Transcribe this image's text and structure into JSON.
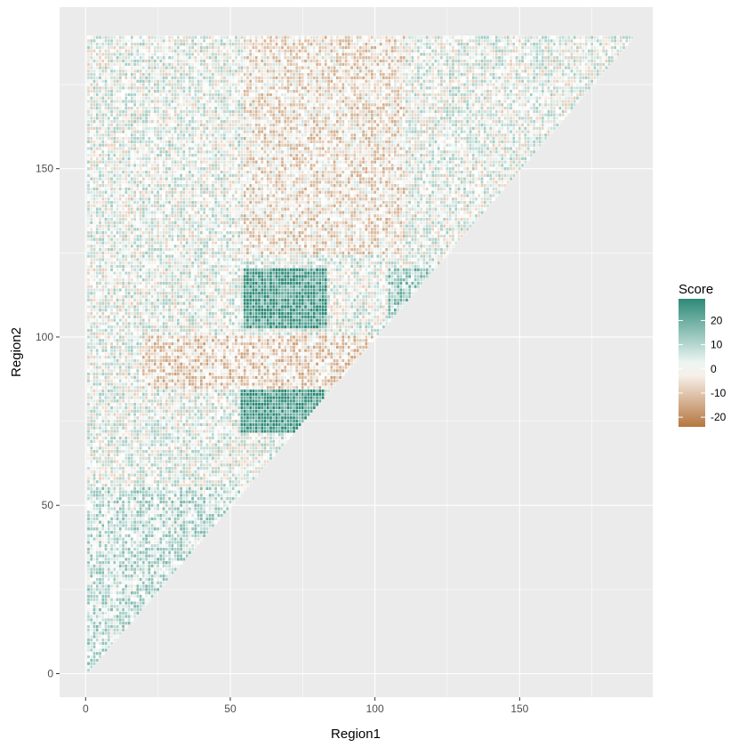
{
  "chart_data": {
    "type": "heatmap",
    "title": "",
    "xlabel": "Region1",
    "ylabel": "Region2",
    "xlim": [
      -9,
      196
    ],
    "ylim": [
      -7,
      198
    ],
    "x_ticks": [
      0,
      50,
      100,
      150
    ],
    "x_tick_labels": [
      "0",
      "50",
      "100",
      "150"
    ],
    "y_ticks": [
      0,
      50,
      100,
      150
    ],
    "y_tick_labels": [
      "0",
      "50",
      "100",
      "150"
    ],
    "n_regions": 189,
    "layout": "lower-triangle: tiles where Region2 >= Region1",
    "grid": true,
    "legend": {
      "title": "Score",
      "position": "right",
      "ticks": [
        20,
        10,
        0,
        -10,
        -20
      ],
      "tick_labels": [
        "20",
        "10",
        "0",
        "-10",
        "-20"
      ],
      "min": -24,
      "max": 29,
      "low_color": "#b5763f",
      "mid_color": "#ffffff",
      "high_color": "#2c8a77"
    },
    "blocks": [
      {
        "region1": [
          55,
          83
        ],
        "region2": [
          103,
          120
        ],
        "score": 24
      },
      {
        "region1": [
          54,
          82
        ],
        "region2": [
          72,
          84
        ],
        "score": 25
      },
      {
        "region1": [
          0,
          55
        ],
        "region2": [
          0,
          55
        ],
        "score": 7
      },
      {
        "region1": [
          105,
          120
        ],
        "region2": [
          105,
          120
        ],
        "score": 12
      },
      {
        "region1": [
          20,
          100
        ],
        "region2": [
          85,
          100
        ],
        "score": -6
      },
      {
        "region1": [
          55,
          110
        ],
        "region2": [
          125,
          189
        ],
        "score": -4
      }
    ],
    "background_color": "#ebebeb",
    "gridline_color": "#ffffff"
  }
}
